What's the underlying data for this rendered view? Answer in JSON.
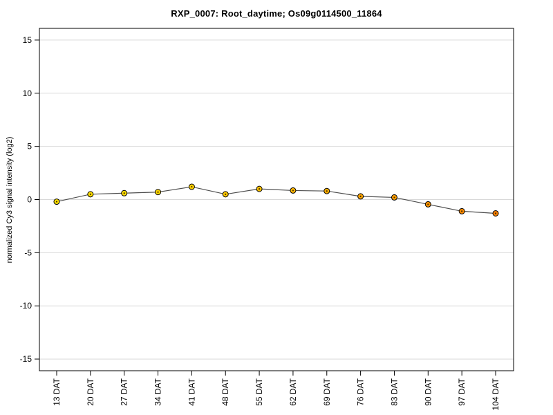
{
  "chart_data": {
    "type": "line",
    "title": "RXP_0007: Root_daytime; Os09g0114500_11864",
    "xlabel": "",
    "ylabel": "normalized Cy3 signal intensity (log2)",
    "categories": [
      "13 DAT",
      "20 DAT",
      "27 DAT",
      "34 DAT",
      "41 DAT",
      "48 DAT",
      "55 DAT",
      "62 DAT",
      "69 DAT",
      "76 DAT",
      "83 DAT",
      "90 DAT",
      "97 DAT",
      "104 DAT"
    ],
    "values": [
      -0.2,
      0.5,
      0.6,
      0.7,
      1.2,
      0.5,
      1.0,
      0.85,
      0.8,
      0.3,
      0.2,
      -0.45,
      -1.1,
      -1.3
    ],
    "yticks": [
      15,
      10,
      5,
      0,
      -5,
      -10,
      -15
    ],
    "ylim": [
      -16.1,
      16.1
    ],
    "grid": true,
    "legend_position": "none",
    "line_color": "#4d4d4d",
    "grid_color": "#d9d9d9",
    "axis_color": "#000000",
    "tick_label_color": "#000000",
    "marker_stroke": "#000000",
    "marker_center": "#4a3000",
    "point_colors": [
      "#ffe100",
      "#ffdf00",
      "#ffdc00",
      "#ffd700",
      "#ffd200",
      "#ffca00",
      "#ffc100",
      "#ffb700",
      "#ffae00",
      "#ffa500",
      "#ff9d00",
      "#ff9400",
      "#ff8a00",
      "#f57e00"
    ]
  }
}
